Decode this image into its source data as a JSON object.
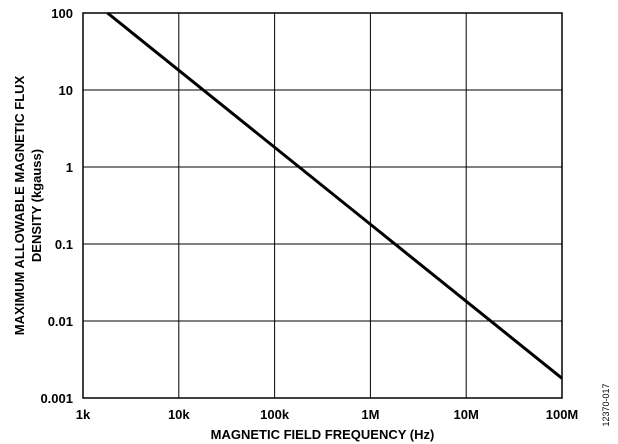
{
  "chart_data": {
    "type": "line",
    "title": "",
    "xlabel": "MAGNETIC FIELD FREQUENCY (Hz)",
    "ylabel_lines": [
      "MAXIMUM ALLOWABLE MAGNETIC FLUX",
      "DENSITY (kgauss)"
    ],
    "x_scale": "log",
    "y_scale": "log",
    "xlim": [
      1000,
      100000000
    ],
    "ylim": [
      0.001,
      100
    ],
    "x_ticks": [
      {
        "value": 1000,
        "label": "1k"
      },
      {
        "value": 10000,
        "label": "10k"
      },
      {
        "value": 100000,
        "label": "100k"
      },
      {
        "value": 1000000,
        "label": "1M"
      },
      {
        "value": 10000000,
        "label": "10M"
      },
      {
        "value": 100000000,
        "label": "100M"
      }
    ],
    "y_ticks": [
      {
        "value": 100,
        "label": "100"
      },
      {
        "value": 10,
        "label": "10"
      },
      {
        "value": 1,
        "label": "1"
      },
      {
        "value": 0.1,
        "label": "0.1"
      },
      {
        "value": 0.01,
        "label": "0.01"
      },
      {
        "value": 0.001,
        "label": "0.001"
      }
    ],
    "grid": true,
    "series": [
      {
        "x": [
          1800,
          100000000
        ],
        "y": [
          100,
          0.0018
        ]
      }
    ],
    "figure_id": "12370-017"
  }
}
